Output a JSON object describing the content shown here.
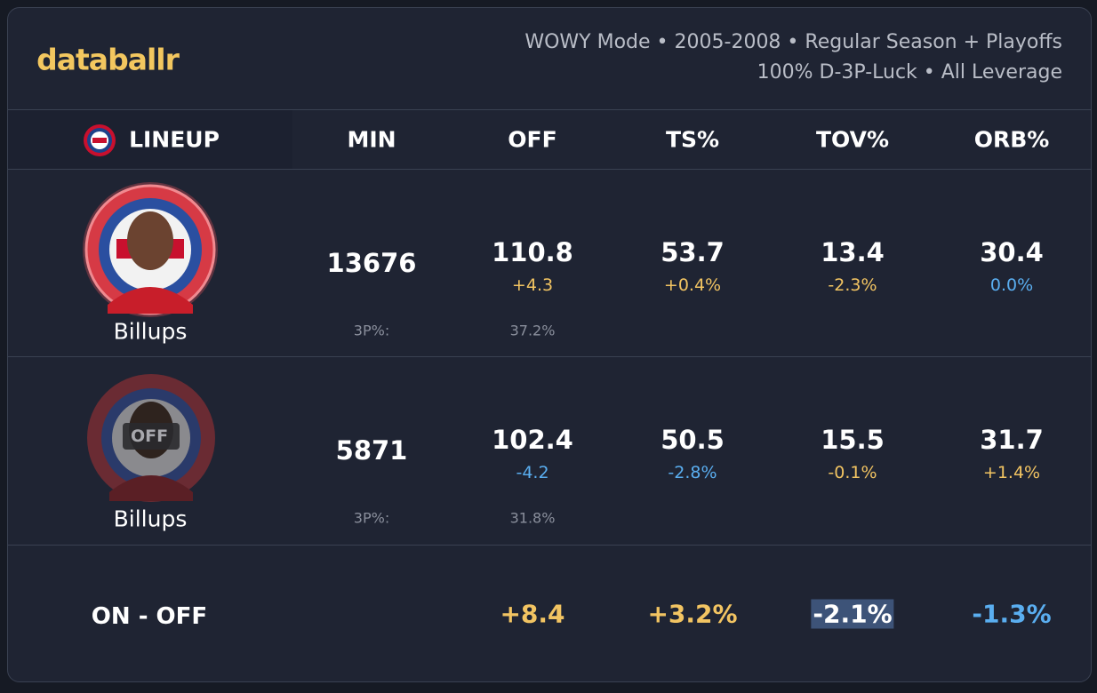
{
  "header": {
    "brand": "databallr",
    "subtitle": [
      "WOWY Mode • 2005-2008 • Regular Season + Playoffs",
      "100% D-3P-Luck • All Leverage"
    ]
  },
  "table": {
    "columns": [
      "LINEUP",
      "MIN",
      "OFF",
      "TS%",
      "TOV%",
      "ORB%"
    ],
    "rows": [
      {
        "player": "Billups",
        "min": "13676",
        "stats": [
          {
            "value": "110.8",
            "delta": "+4.3",
            "color": "#f2c462"
          },
          {
            "value": "53.7",
            "delta": "+0.4%",
            "color": "#f2c462"
          },
          {
            "value": "13.4",
            "delta": "-2.3%",
            "color": "#f2c462"
          },
          {
            "value": "30.4",
            "delta": "0.0%",
            "color": "#5aaef0"
          }
        ],
        "three_label": "3P%:",
        "three_value": "37.2%"
      },
      {
        "player": "Billups",
        "badge": "OFF",
        "min": "5871",
        "stats": [
          {
            "value": "102.4",
            "delta": "-4.2",
            "color": "#5aaef0"
          },
          {
            "value": "50.5",
            "delta": "-2.8%",
            "color": "#5aaef0"
          },
          {
            "value": "15.5",
            "delta": "-0.1%",
            "color": "#f2c462"
          },
          {
            "value": "31.7",
            "delta": "+1.4%",
            "color": "#f2c462"
          }
        ],
        "three_label": "3P%:",
        "three_value": "31.8%"
      }
    ],
    "diff": {
      "label": "ON - OFF",
      "values": [
        {
          "text": "+8.4",
          "color": "#f2c462",
          "highlight": false
        },
        {
          "text": "+3.2%",
          "color": "#f2c462",
          "highlight": false
        },
        {
          "text": "-2.1%",
          "color": "#ffffff",
          "highlight": true
        },
        {
          "text": "-1.3%",
          "color": "#5aaef0",
          "highlight": false
        }
      ]
    }
  }
}
